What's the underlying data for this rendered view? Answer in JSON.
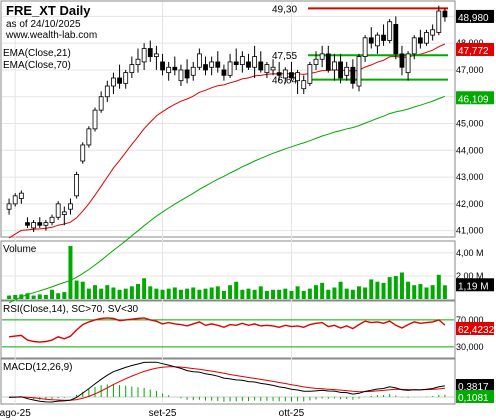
{
  "header": {
    "title": "FRE_XT Daily",
    "asof": "as of 24/10/2025",
    "site": "www.wealth-lab.com"
  },
  "chart_data": [
    {
      "type": "candlestick",
      "panel": "price",
      "legend": [
        "EMA(Close,21)",
        "EMA(Close,70)"
      ],
      "ylim": [
        40.8,
        49.5
      ],
      "yticks": [
        "41,000",
        "42,000",
        "43,000",
        "44,000",
        "45,000",
        "46,000",
        "47,000",
        "48,000",
        "49,000"
      ],
      "levels": [
        {
          "label": "49,30",
          "value": 49.3,
          "color": "#e00000"
        },
        {
          "label": "47,55",
          "value": 47.55,
          "color": "#00aa00"
        },
        {
          "label": "46,64",
          "value": 46.64,
          "color": "#00aa00"
        }
      ],
      "candles": [
        [
          41.8,
          42.2,
          41.6,
          42.0
        ],
        [
          42.0,
          42.4,
          41.9,
          42.3
        ],
        [
          42.2,
          42.5,
          42.0,
          42.4
        ],
        [
          41.3,
          41.5,
          41.1,
          41.2
        ],
        [
          41.1,
          41.4,
          40.95,
          41.3
        ],
        [
          41.3,
          41.5,
          41.1,
          41.2
        ],
        [
          41.2,
          41.4,
          41.0,
          41.3
        ],
        [
          41.3,
          41.6,
          41.2,
          41.5
        ],
        [
          41.5,
          42.1,
          41.4,
          42.0
        ],
        [
          41.6,
          41.9,
          41.2,
          41.7
        ],
        [
          41.8,
          42.2,
          41.6,
          42.0
        ],
        [
          42.3,
          43.2,
          42.2,
          43.1
        ],
        [
          43.6,
          44.3,
          43.5,
          44.2
        ],
        [
          44.2,
          44.9,
          44.1,
          44.8
        ],
        [
          44.8,
          45.6,
          44.7,
          45.5
        ],
        [
          45.5,
          46.2,
          45.4,
          46.0
        ],
        [
          46.0,
          46.6,
          45.8,
          46.4
        ],
        [
          46.4,
          46.9,
          46.1,
          46.7
        ],
        [
          46.7,
          47.2,
          46.3,
          46.5
        ],
        [
          46.5,
          47.0,
          46.3,
          46.9
        ],
        [
          46.9,
          47.5,
          46.7,
          47.2
        ],
        [
          47.2,
          47.8,
          46.9,
          47.4
        ],
        [
          47.3,
          48.0,
          47.0,
          47.8
        ],
        [
          47.8,
          48.1,
          47.3,
          47.5
        ],
        [
          47.5,
          47.9,
          47.0,
          47.6
        ],
        [
          47.3,
          47.6,
          46.8,
          47.0
        ],
        [
          46.9,
          47.3,
          46.6,
          47.1
        ],
        [
          47.1,
          47.5,
          46.8,
          47.0
        ],
        [
          46.6,
          47.2,
          46.4,
          47.0
        ],
        [
          47.0,
          47.4,
          46.5,
          46.7
        ],
        [
          46.8,
          47.3,
          46.6,
          47.1
        ],
        [
          47.1,
          47.8,
          47.0,
          47.6
        ],
        [
          47.2,
          47.5,
          46.8,
          47.0
        ],
        [
          47.1,
          47.5,
          46.8,
          47.3
        ],
        [
          47.3,
          47.7,
          46.9,
          47.1
        ],
        [
          47.0,
          47.2,
          46.6,
          46.8
        ],
        [
          46.8,
          47.6,
          46.7,
          47.3
        ],
        [
          47.3,
          47.8,
          47.0,
          47.2
        ],
        [
          47.2,
          47.7,
          46.9,
          47.5
        ],
        [
          47.3,
          47.6,
          47.0,
          47.1
        ],
        [
          47.1,
          47.9,
          46.7,
          47.5
        ],
        [
          47.3,
          47.7,
          46.9,
          47.0
        ],
        [
          46.9,
          47.3,
          46.7,
          47.2
        ],
        [
          47.0,
          47.4,
          46.8,
          47.1
        ],
        [
          46.9,
          47.3,
          46.6,
          46.8
        ],
        [
          46.7,
          47.1,
          46.5,
          47.0
        ],
        [
          46.9,
          47.3,
          46.6,
          46.7
        ],
        [
          46.6,
          47.0,
          46.1,
          46.9
        ],
        [
          46.3,
          46.8,
          46.1,
          46.6
        ],
        [
          46.5,
          47.3,
          46.4,
          47.2
        ],
        [
          47.2,
          47.7,
          47.0,
          47.4
        ],
        [
          47.4,
          47.9,
          47.1,
          47.6
        ],
        [
          47.6,
          47.9,
          46.9,
          47.0
        ],
        [
          47.0,
          47.6,
          46.6,
          47.3
        ],
        [
          47.3,
          47.6,
          46.5,
          46.7
        ],
        [
          46.8,
          47.3,
          46.6,
          47.1
        ],
        [
          47.1,
          47.4,
          46.3,
          46.5
        ],
        [
          46.4,
          47.6,
          46.2,
          47.5
        ],
        [
          47.5,
          48.3,
          47.3,
          48.2
        ],
        [
          48.2,
          48.6,
          47.8,
          48.0
        ],
        [
          47.9,
          48.4,
          47.6,
          48.3
        ],
        [
          48.3,
          48.7,
          47.9,
          48.1
        ],
        [
          48.1,
          48.9,
          48.0,
          48.8
        ],
        [
          48.7,
          49.0,
          47.4,
          47.6
        ],
        [
          47.6,
          47.9,
          46.8,
          47.1
        ],
        [
          46.9,
          47.7,
          46.6,
          47.6
        ],
        [
          47.6,
          48.3,
          47.4,
          48.2
        ],
        [
          48.2,
          48.5,
          47.8,
          48.0
        ],
        [
          48.0,
          48.5,
          47.9,
          48.4
        ],
        [
          48.3,
          48.7,
          48.1,
          48.5
        ],
        [
          48.4,
          49.4,
          48.3,
          49.2
        ],
        [
          49.2,
          49.3,
          48.8,
          48.98
        ]
      ],
      "ema21_last": {
        "label": "47,772",
        "color": "#e00000"
      },
      "ema70_last": {
        "label": "46,109",
        "color": "#00aa00"
      },
      "last_close_label": "48,980"
    },
    {
      "type": "bar",
      "panel": "volume",
      "title": "Volume",
      "yticks": [
        "2,00 M",
        "4,00 M"
      ],
      "ylim": [
        0,
        4.6
      ],
      "last_label": "1,19 M",
      "values": [
        0.3,
        0.35,
        0.4,
        0.5,
        0.3,
        0.4,
        0.35,
        0.8,
        0.5,
        0.6,
        4.6,
        1.6,
        1.5,
        0.9,
        1.2,
        0.9,
        1.2,
        1.0,
        0.8,
        0.9,
        1.1,
        1.3,
        1.8,
        1.1,
        0.9,
        0.8,
        0.9,
        1.0,
        0.8,
        0.9,
        1.0,
        0.8,
        0.9,
        1.0,
        1.1,
        0.7,
        1.2,
        1.5,
        0.8,
        0.9,
        0.8,
        1.1,
        0.7,
        0.8,
        0.8,
        0.9,
        0.7,
        1.1,
        0.7,
        0.9,
        1.2,
        1.4,
        0.8,
        1.0,
        1.5,
        0.9,
        0.8,
        1.1,
        1.0,
        1.7,
        1.5,
        1.4,
        1.9,
        2.0,
        2.3,
        1.5,
        1.2,
        1.3,
        1.0,
        1.2,
        2.1,
        1.19
      ]
    },
    {
      "type": "line",
      "panel": "rsi",
      "title": "RSI(Close,14), SC>70, SV<30",
      "yticks": [
        "30,000",
        "70,000"
      ],
      "ylim": [
        15,
        95
      ],
      "bands": [
        30,
        70
      ],
      "last_label": "62,4232",
      "values": [
        45,
        46,
        47,
        40,
        38,
        37,
        38,
        40,
        45,
        42,
        46,
        55,
        63,
        67,
        70,
        72,
        73,
        72,
        69,
        70,
        71,
        72,
        73,
        70,
        68,
        64,
        66,
        64,
        63,
        61,
        64,
        67,
        62,
        64,
        62,
        59,
        63,
        62,
        65,
        62,
        64,
        61,
        62,
        61,
        59,
        62,
        60,
        61,
        59,
        63,
        65,
        66,
        60,
        62,
        58,
        61,
        57,
        63,
        68,
        66,
        67,
        65,
        68,
        62,
        58,
        63,
        67,
        65,
        66,
        67,
        70,
        62.42
      ]
    },
    {
      "type": "line",
      "panel": "macd",
      "title": "MACD(12,26,9)",
      "ylim": [
        -0.25,
        1.45
      ],
      "macd_last": {
        "label": "0,3817"
      },
      "signal_last": {
        "label": "0,1081"
      }
    }
  ],
  "x_axis": {
    "labels": [
      {
        "text": "ago-25",
        "index": 1
      },
      {
        "text": "set-25",
        "index": 25
      },
      {
        "text": "ott-25",
        "index": 46
      }
    ]
  }
}
